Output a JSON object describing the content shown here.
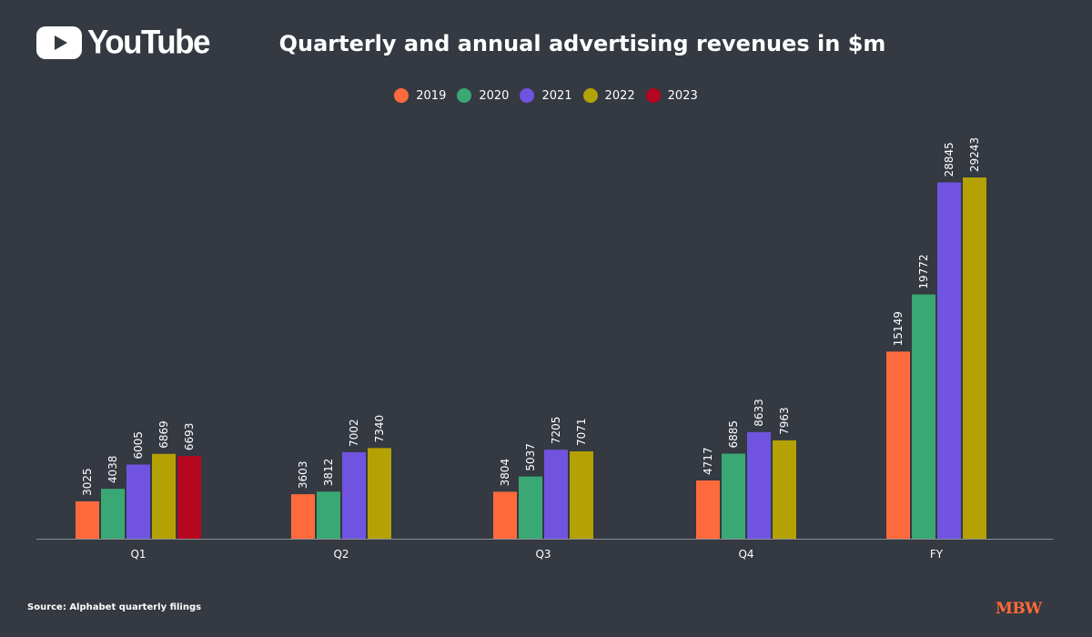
{
  "branding": {
    "logo_icon": "youtube-play-icon",
    "logo_text": "YouTube",
    "publisher_mark": "MBW"
  },
  "source": "Source: Alphabet quarterly filings",
  "chart_data": {
    "type": "bar",
    "title": "Quarterly and annual advertising revenues in $m",
    "xlabel": "",
    "ylabel": "",
    "categories": [
      "Q1",
      "Q2",
      "Q3",
      "Q4",
      "FY"
    ],
    "series": [
      {
        "name": "2019",
        "color": "#ff6a3d",
        "values": [
          3025,
          3603,
          3804,
          4717,
          15149
        ]
      },
      {
        "name": "2020",
        "color": "#3aa874",
        "values": [
          4038,
          3812,
          5037,
          6885,
          19772
        ]
      },
      {
        "name": "2021",
        "color": "#7054e0",
        "values": [
          6005,
          7002,
          7205,
          8633,
          28845
        ]
      },
      {
        "name": "2022",
        "color": "#b4a104",
        "values": [
          6869,
          7340,
          7071,
          7963,
          29243
        ]
      },
      {
        "name": "2023",
        "color": "#b5071f",
        "values": [
          6693,
          null,
          null,
          null,
          null
        ]
      }
    ],
    "ylim": [
      0,
      29243
    ],
    "grid": false,
    "legend_position": "top-center",
    "value_labels": "vertical-above-bars"
  }
}
